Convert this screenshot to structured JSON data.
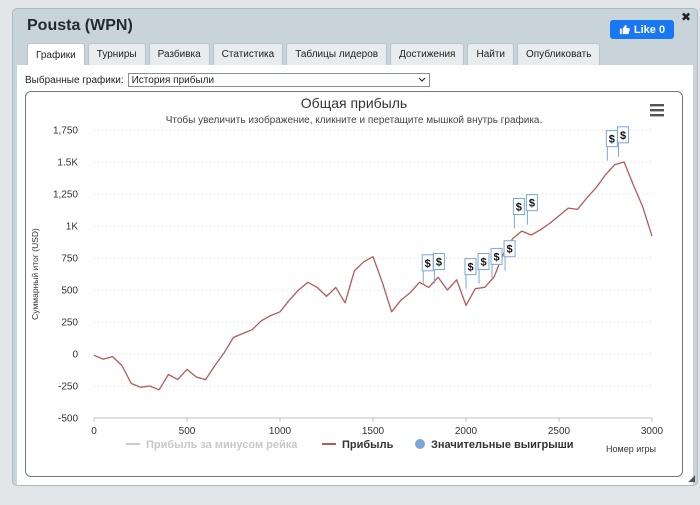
{
  "window": {
    "title": "Pousta (WPN)",
    "close_label": "✖",
    "like_label": "Like 0"
  },
  "tabs": [
    {
      "label": "Графики",
      "active": true
    },
    {
      "label": "Турниры"
    },
    {
      "label": "Разбивка"
    },
    {
      "label": "Статистика"
    },
    {
      "label": "Таблицы лидеров"
    },
    {
      "label": "Достижения"
    },
    {
      "label": "Найти"
    },
    {
      "label": "Опубликовать"
    }
  ],
  "selector": {
    "label": "Выбранные графики:",
    "value": "История прибыли"
  },
  "chart_data": {
    "type": "line",
    "title": "Общая прибыль",
    "subtitle": "Чтобы увеличить изображение, кликните и перетащите мышкой внутрь графика.",
    "ylabel": "Суммарный итог (USD)",
    "xlabel": "Номер игры",
    "ylim": [
      -500,
      1750
    ],
    "xlim": [
      0,
      3000
    ],
    "yticks": [
      "-500",
      "-250",
      "0",
      "250",
      "500",
      "750",
      "1K",
      "1,250",
      "1.5K",
      "1,750"
    ],
    "ytick_values": [
      -500,
      -250,
      0,
      250,
      500,
      750,
      1000,
      1250,
      1500,
      1750
    ],
    "xticks": [
      "0",
      "500",
      "1000",
      "1500",
      "2000",
      "2500",
      "3000"
    ],
    "xtick_values": [
      0,
      500,
      1000,
      1500,
      2000,
      2500,
      3000
    ],
    "grid": "horizontal dotted",
    "legend_position": "bottom",
    "colors": {
      "profit": "#b55a5a",
      "rake": "#cccccc",
      "wins": "#7aa6d8",
      "flag_border": "#7aa6d8"
    },
    "series": [
      {
        "name": "Прибыль",
        "x": [
          0,
          50,
          100,
          150,
          200,
          250,
          300,
          350,
          400,
          450,
          500,
          550,
          600,
          650,
          700,
          750,
          800,
          850,
          900,
          950,
          1000,
          1050,
          1100,
          1150,
          1200,
          1250,
          1300,
          1350,
          1400,
          1450,
          1500,
          1550,
          1600,
          1650,
          1700,
          1750,
          1800,
          1850,
          1900,
          1950,
          2000,
          2050,
          2100,
          2150,
          2200,
          2250,
          2300,
          2350,
          2400,
          2450,
          2500,
          2550,
          2600,
          2650,
          2700,
          2750,
          2800,
          2850,
          2900,
          2950,
          3000
        ],
        "y": [
          -10,
          -40,
          -20,
          -90,
          -230,
          -260,
          -250,
          -280,
          -160,
          -200,
          -120,
          -180,
          -200,
          -90,
          10,
          130,
          160,
          190,
          260,
          300,
          330,
          420,
          500,
          560,
          520,
          450,
          520,
          400,
          650,
          720,
          760,
          560,
          330,
          420,
          480,
          560,
          520,
          600,
          500,
          580,
          380,
          510,
          520,
          600,
          780,
          900,
          960,
          930,
          970,
          1020,
          1080,
          1140,
          1130,
          1220,
          1300,
          1400,
          1480,
          1500,
          1320,
          1150,
          920
        ]
      },
      {
        "name": "Прибыль за минусом рейка",
        "values": []
      }
    ],
    "legend": [
      {
        "label": "Прибыль за минусом рейка",
        "color": "#cccccc",
        "muted": true
      },
      {
        "label": "Прибыль",
        "color": "#b55a5a"
      },
      {
        "label": "Значительные выигрыши",
        "color": "#7aa6d8",
        "marker": "circle"
      }
    ],
    "flags": [
      {
        "x": 1770,
        "y": 650,
        "label": "$"
      },
      {
        "x": 1830,
        "y": 660,
        "label": "$"
      },
      {
        "x": 2000,
        "y": 620,
        "label": "$"
      },
      {
        "x": 2070,
        "y": 660,
        "label": "$"
      },
      {
        "x": 2140,
        "y": 700,
        "label": "$"
      },
      {
        "x": 2210,
        "y": 760,
        "label": "$"
      },
      {
        "x": 2260,
        "y": 1090,
        "label": "$"
      },
      {
        "x": 2330,
        "y": 1120,
        "label": "$"
      },
      {
        "x": 2760,
        "y": 1620,
        "label": "$"
      },
      {
        "x": 2820,
        "y": 1650,
        "label": "$"
      }
    ]
  }
}
